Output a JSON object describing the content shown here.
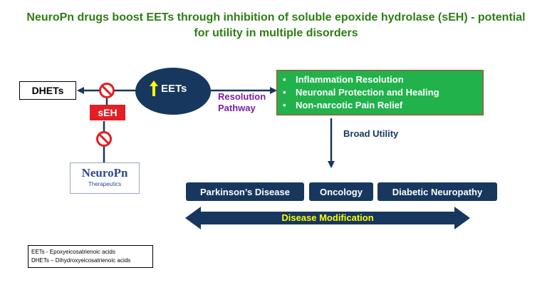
{
  "title": {
    "line1": "NeuroPn drugs boost EETs through inhibition of soluble epoxide hydrolase (sEH) - potential",
    "line2": "for utility in multiple disorders"
  },
  "nodes": {
    "dhets": "DHETs",
    "seh": "sEH",
    "eets": "EETs",
    "resolution_pathway_line1": "Resolution",
    "resolution_pathway_line2": "Pathway",
    "broad_utility": "Broad Utility"
  },
  "benefits": [
    "Inflammation Resolution",
    "Neuronal Protection and Healing",
    "Non-narcotic Pain Relief"
  ],
  "diseases": [
    "Parkinson’s Disease",
    "Oncology",
    "Diabetic Neuropathy"
  ],
  "disease_modification": "Disease Modification",
  "logo": {
    "name_part1": "Neuro",
    "name_part2": "Pn",
    "subtitle": "Therapeutics"
  },
  "legend": [
    "EETs - Epoxyeicosatrienoic acids",
    "DHETs – Dihydroxyeicosatrienoic acids"
  ],
  "colors": {
    "title_green": "#2e7d14",
    "navy": "#17375e",
    "benefit_green": "#21b24b",
    "inhibit_red": "#e31e24",
    "pathway_purple": "#7b1fa2",
    "highlight_yellow": "#ffff00"
  },
  "icons": {
    "inhibition": "no-symbol-icon",
    "increase": "up-arrow-icon"
  }
}
